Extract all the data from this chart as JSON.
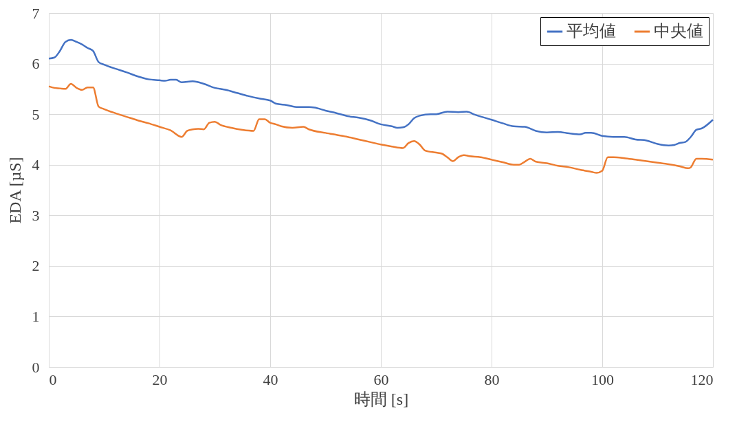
{
  "chart_data": {
    "type": "line",
    "xlabel": "時間 [s]",
    "ylabel": "EDA [µS]",
    "xlim": [
      0,
      120
    ],
    "xticks": [
      0,
      20,
      40,
      60,
      80,
      100,
      120
    ],
    "ylim": [
      0,
      7
    ],
    "yticks": [
      0,
      1,
      2,
      3,
      4,
      5,
      6,
      7
    ],
    "grid": true,
    "legend": "top right",
    "marker": "none",
    "line_style": "solid",
    "series": [
      {
        "name": "平均値",
        "color": "#4472c4",
        "x": [
          0,
          1,
          2,
          3,
          4,
          5,
          6,
          7,
          8,
          9,
          10,
          12,
          14,
          16,
          18,
          20,
          21,
          22,
          23,
          24,
          26,
          28,
          30,
          32,
          34,
          36,
          38,
          40,
          41,
          43,
          45,
          47,
          48,
          50,
          52,
          54,
          56,
          58,
          60,
          62,
          63,
          64,
          65,
          66,
          67,
          69,
          70,
          72,
          74,
          75.5,
          77,
          80,
          82,
          84,
          86,
          88,
          90,
          92,
          94,
          96,
          97,
          98,
          100,
          102,
          104,
          106,
          108,
          110,
          112,
          113,
          114,
          115,
          116,
          117,
          118,
          120
        ],
        "values": [
          6.1,
          6.12,
          6.25,
          6.43,
          6.47,
          6.43,
          6.38,
          6.31,
          6.25,
          6.03,
          5.98,
          5.9,
          5.83,
          5.75,
          5.69,
          5.67,
          5.66,
          5.68,
          5.68,
          5.63,
          5.65,
          5.6,
          5.52,
          5.48,
          5.42,
          5.36,
          5.31,
          5.27,
          5.21,
          5.18,
          5.14,
          5.14,
          5.13,
          5.07,
          5.02,
          4.96,
          4.93,
          4.88,
          4.8,
          4.76,
          4.73,
          4.74,
          4.8,
          4.92,
          4.97,
          5.0,
          5.0,
          5.05,
          5.04,
          5.05,
          4.99,
          4.89,
          4.82,
          4.76,
          4.75,
          4.67,
          4.64,
          4.65,
          4.62,
          4.6,
          4.63,
          4.63,
          4.57,
          4.55,
          4.55,
          4.5,
          4.48,
          4.41,
          4.38,
          4.39,
          4.43,
          4.45,
          4.55,
          4.69,
          4.72,
          4.89
        ]
      },
      {
        "name": "中央値",
        "color": "#ed7d31",
        "x": [
          0,
          1,
          2,
          3,
          4,
          5,
          6,
          7,
          8,
          9,
          10,
          12,
          14,
          16,
          18,
          20,
          22,
          24,
          25,
          26,
          27,
          28,
          29,
          30,
          31,
          33,
          35,
          37,
          38,
          39,
          40,
          41,
          42,
          44,
          46,
          47,
          50,
          52,
          54,
          56,
          58,
          60,
          62,
          64,
          65,
          66,
          67,
          68,
          70,
          71,
          72,
          73,
          74,
          75,
          76,
          78,
          80,
          82,
          84,
          85,
          86,
          87,
          88,
          90,
          92,
          94,
          96,
          98,
          99,
          100,
          101,
          102,
          104,
          106,
          108,
          110,
          112,
          114,
          115.5,
          116,
          117,
          118,
          120
        ],
        "values": [
          5.55,
          5.52,
          5.51,
          5.5,
          5.6,
          5.52,
          5.48,
          5.53,
          5.53,
          5.15,
          5.1,
          5.02,
          4.95,
          4.88,
          4.82,
          4.75,
          4.68,
          4.55,
          4.67,
          4.7,
          4.71,
          4.7,
          4.83,
          4.85,
          4.79,
          4.73,
          4.69,
          4.67,
          4.9,
          4.9,
          4.83,
          4.8,
          4.76,
          4.73,
          4.75,
          4.7,
          4.63,
          4.59,
          4.55,
          4.5,
          4.45,
          4.4,
          4.36,
          4.33,
          4.43,
          4.47,
          4.4,
          4.28,
          4.24,
          4.22,
          4.15,
          4.07,
          4.15,
          4.19,
          4.17,
          4.15,
          4.1,
          4.05,
          4.0,
          4.0,
          4.06,
          4.12,
          4.06,
          4.03,
          3.98,
          3.95,
          3.9,
          3.86,
          3.84,
          3.88,
          4.15,
          4.15,
          4.13,
          4.1,
          4.07,
          4.04,
          4.01,
          3.97,
          3.93,
          3.95,
          4.12,
          4.12,
          4.1
        ]
      }
    ]
  }
}
